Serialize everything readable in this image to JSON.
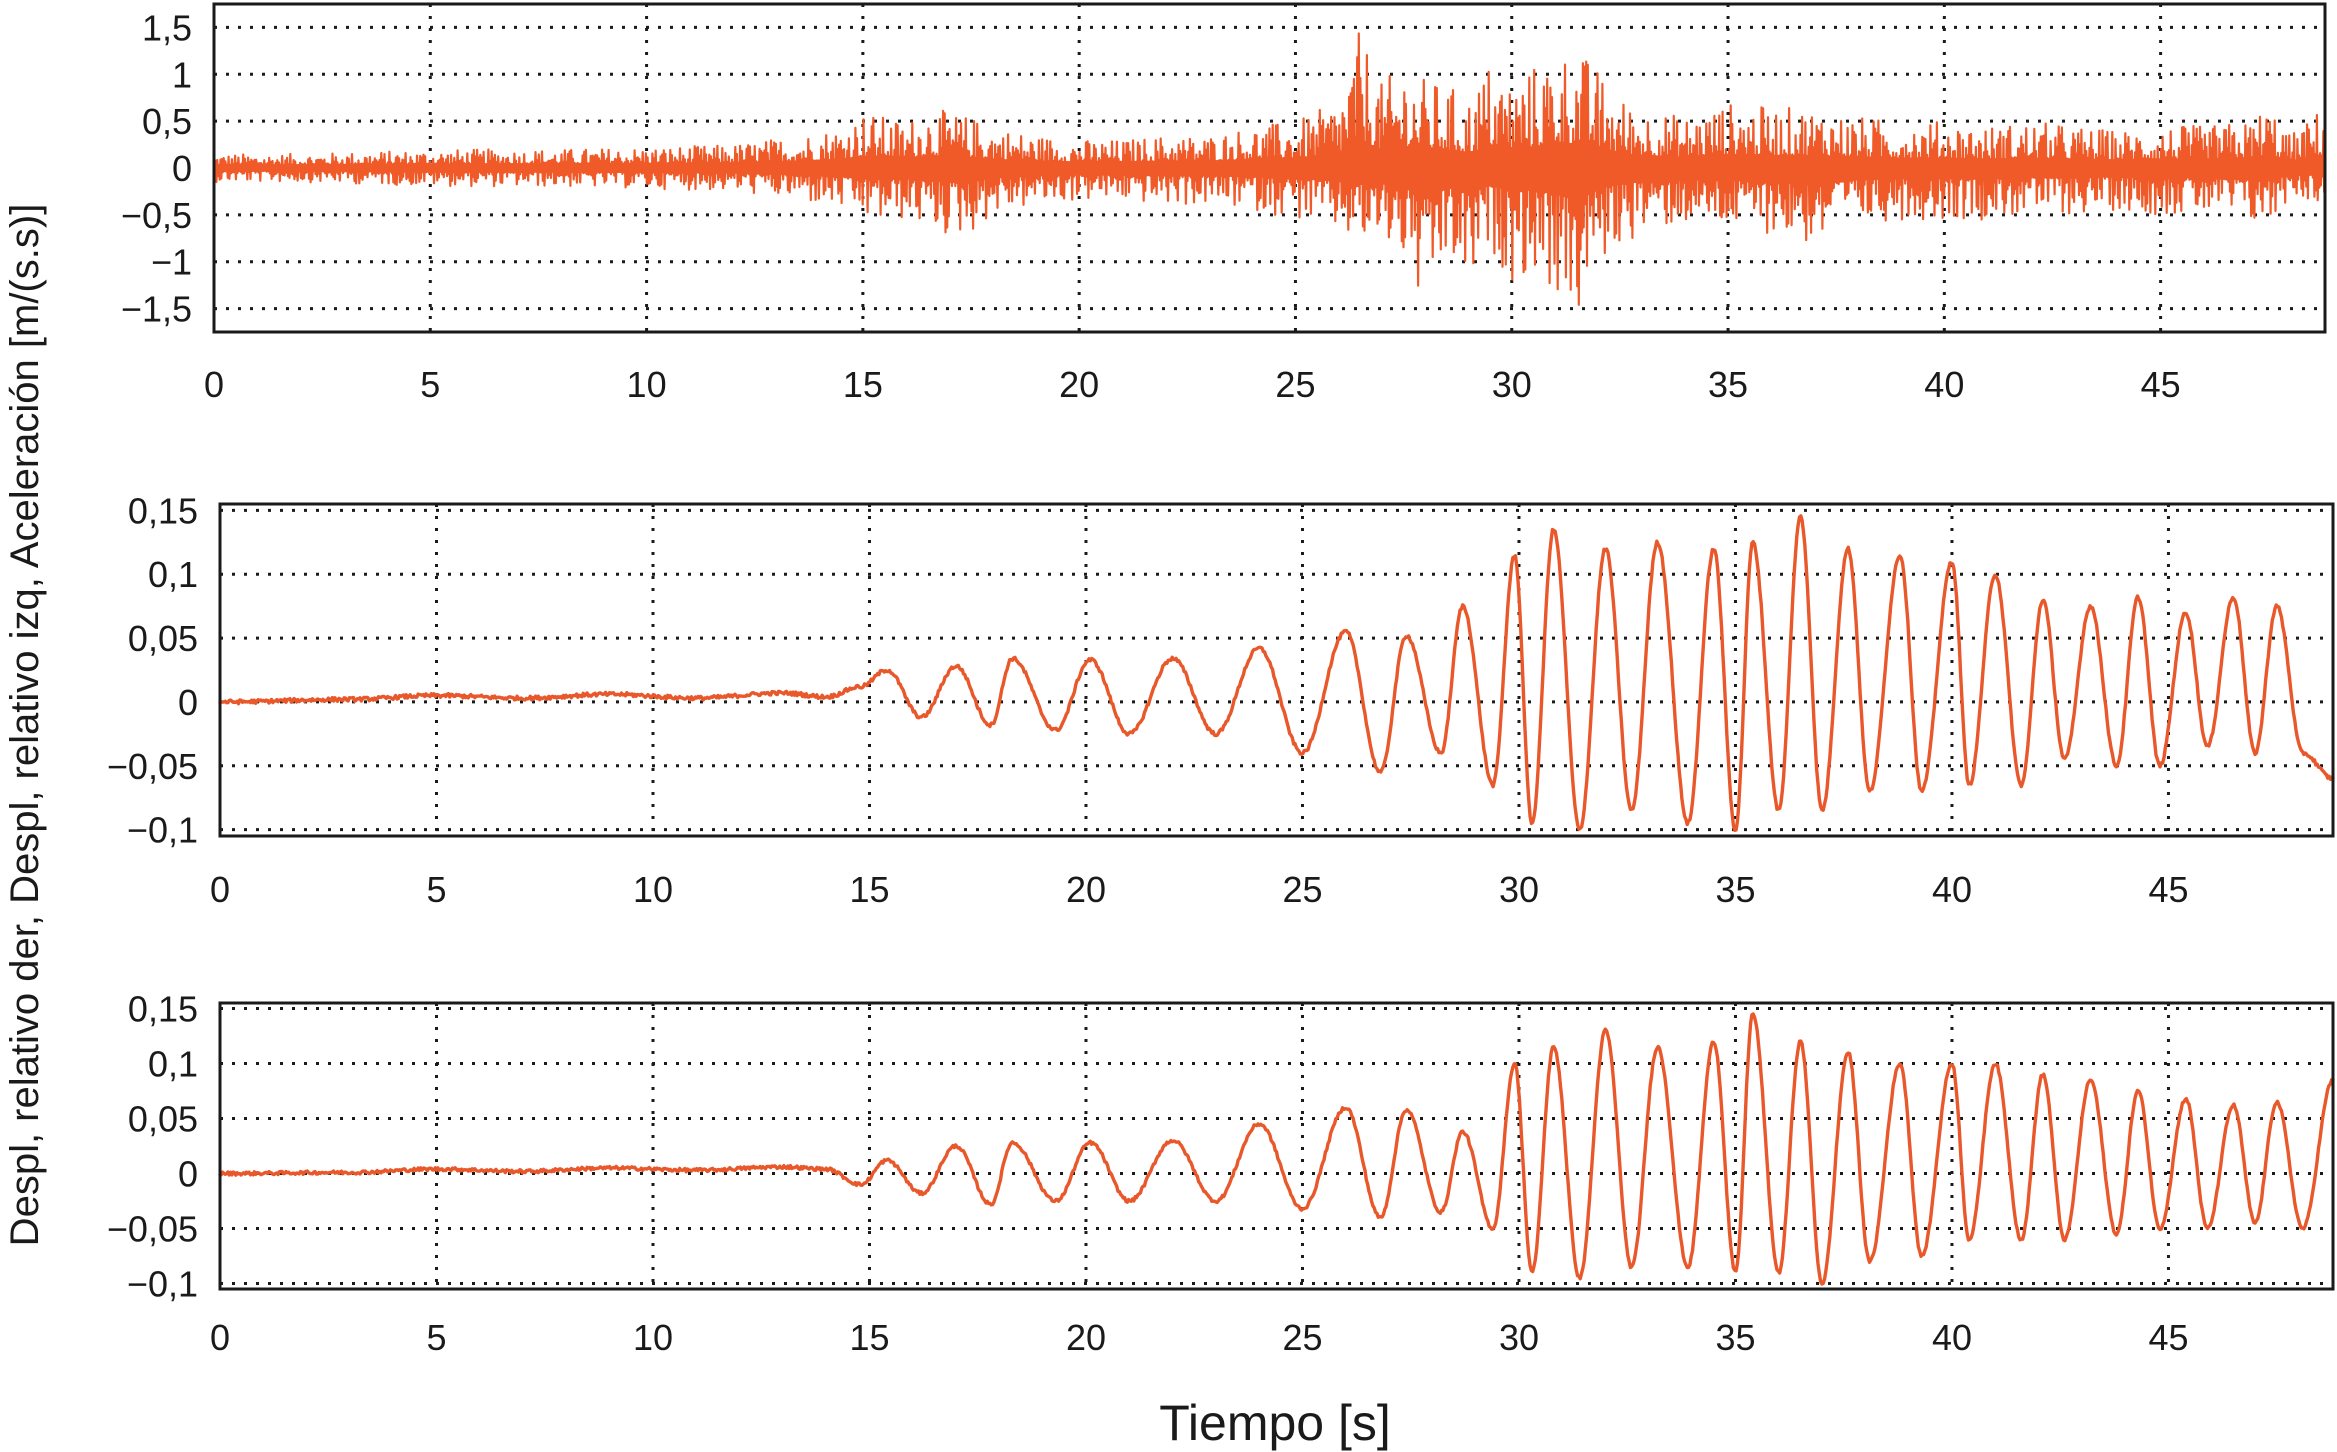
{
  "figure": {
    "y_title": "Despl, relativo der, Despl, relativo izq, Aceleración [m/(s.s)]",
    "x_title": "Tiempo [s]"
  },
  "chart_data": [
    {
      "type": "line",
      "xlim": [
        0,
        48.8
      ],
      "ylim": [
        -1.75,
        1.75
      ],
      "x_ticks": [
        0,
        5,
        10,
        15,
        20,
        25,
        30,
        35,
        40,
        45
      ],
      "x_tick_labels": [
        "0",
        "5",
        "10",
        "15",
        "20",
        "25",
        "30",
        "35",
        "40",
        "45"
      ],
      "y_ticks": [
        1.5,
        1,
        0.5,
        0,
        -0.5,
        -1,
        -1.5
      ],
      "y_tick_labels": [
        "1,5",
        "1",
        "0,5",
        "0",
        "−0,5",
        "−1",
        "−1,5"
      ],
      "grid": true,
      "color": "#f05a28",
      "series": [
        {
          "x": [
            0,
            2,
            4,
            6,
            8,
            10,
            12,
            13.5,
            14.5,
            15,
            15.5,
            16,
            16.5,
            17,
            17.5,
            18,
            19,
            20,
            21,
            22,
            23,
            24,
            25,
            25.5,
            26,
            26.5,
            27,
            27.5,
            28,
            28.5,
            29,
            29.5,
            30,
            30.5,
            31,
            31.5,
            32,
            32.5,
            33,
            34,
            35,
            36,
            37,
            38,
            39,
            40,
            41,
            42,
            43,
            44,
            45,
            46,
            47,
            47.5,
            48,
            48.5,
            48.8
          ],
          "envelope_upper": [
            0.15,
            0.15,
            0.18,
            0.2,
            0.2,
            0.22,
            0.25,
            0.35,
            0.45,
            0.6,
            0.55,
            0.5,
            0.65,
            0.6,
            0.55,
            0.45,
            0.35,
            0.3,
            0.3,
            0.35,
            0.35,
            0.45,
            0.5,
            0.6,
            0.75,
            1.5,
            0.9,
            1.15,
            0.95,
            0.9,
            0.75,
            1.15,
            0.95,
            1.1,
            1.25,
            1.3,
            1.05,
            0.75,
            0.65,
            0.55,
            0.7,
            0.65,
            0.65,
            0.55,
            0.5,
            0.5,
            0.45,
            0.5,
            0.45,
            0.4,
            0.45,
            0.45,
            0.5,
            0.7,
            0.35,
            0.55,
            0.7
          ],
          "envelope_lower": [
            -0.15,
            -0.15,
            -0.18,
            -0.2,
            -0.2,
            -0.22,
            -0.25,
            -0.35,
            -0.45,
            -0.55,
            -0.6,
            -0.55,
            -0.65,
            -0.75,
            -0.7,
            -0.5,
            -0.4,
            -0.35,
            -0.35,
            -0.4,
            -0.4,
            -0.45,
            -0.55,
            -0.6,
            -0.7,
            -0.85,
            -0.8,
            -1.0,
            -1.65,
            -1.0,
            -1.35,
            -0.9,
            -1.2,
            -1.15,
            -1.35,
            -1.7,
            -1.05,
            -0.85,
            -0.7,
            -0.6,
            -0.65,
            -0.7,
            -0.85,
            -0.6,
            -0.55,
            -0.55,
            -0.55,
            -0.5,
            -0.5,
            -0.45,
            -0.5,
            -0.5,
            -0.6,
            -0.65,
            -0.3,
            -0.35,
            -0.45
          ]
        }
      ]
    },
    {
      "type": "line",
      "xlim": [
        0,
        48.8
      ],
      "ylim": [
        -0.105,
        0.155
      ],
      "x_ticks": [
        0,
        5,
        10,
        15,
        20,
        25,
        30,
        35,
        40,
        45
      ],
      "x_tick_labels": [
        "0",
        "5",
        "10",
        "15",
        "20",
        "25",
        "30",
        "35",
        "40",
        "45"
      ],
      "y_ticks": [
        0.15,
        0.1,
        0.05,
        0,
        -0.05,
        -0.1
      ],
      "y_tick_labels": [
        "0,15",
        "0,1",
        "0,05",
        "0",
        "−0,05",
        "−0,1"
      ],
      "grid": true,
      "color": "#e8582a",
      "series": [
        {
          "x": [
            0,
            3,
            5,
            7,
            9,
            11,
            13,
            14,
            14.8,
            15.4,
            16.2,
            17.0,
            17.8,
            18.3,
            19.3,
            20.1,
            21.0,
            22.0,
            23.0,
            24.0,
            25.0,
            26.0,
            26.8,
            27.4,
            28.2,
            28.7,
            29.4,
            29.9,
            30.3,
            30.8,
            31.4,
            32.0,
            32.6,
            33.2,
            33.9,
            34.5,
            35.0,
            35.4,
            36.0,
            36.5,
            37.0,
            37.6,
            38.1,
            38.8,
            39.3,
            40.0,
            40.4,
            41.0,
            41.6,
            42.1,
            42.6,
            43.2,
            43.8,
            44.3,
            44.8,
            45.4,
            45.9,
            46.5,
            47.0,
            47.5,
            48.1,
            48.8
          ],
          "y": [
            0,
            0.002,
            0.005,
            0.003,
            0.006,
            0.003,
            0.007,
            0.004,
            0.012,
            0.025,
            -0.012,
            0.028,
            -0.018,
            0.034,
            -0.022,
            0.033,
            -0.025,
            0.034,
            -0.025,
            0.042,
            -0.04,
            0.055,
            -0.055,
            0.052,
            -0.04,
            0.075,
            -0.065,
            0.115,
            -0.095,
            0.135,
            -0.1,
            0.12,
            -0.085,
            0.125,
            -0.095,
            0.12,
            -0.1,
            0.125,
            -0.085,
            0.145,
            -0.085,
            0.12,
            -0.07,
            0.115,
            -0.07,
            0.11,
            -0.065,
            0.1,
            -0.065,
            0.08,
            -0.045,
            0.075,
            -0.05,
            0.082,
            -0.05,
            0.07,
            -0.035,
            0.082,
            -0.04,
            0.075,
            -0.04,
            -0.06
          ]
        }
      ]
    },
    {
      "type": "line",
      "xlim": [
        0,
        48.8
      ],
      "ylim": [
        -0.105,
        0.155
      ],
      "x_ticks": [
        0,
        5,
        10,
        15,
        20,
        25,
        30,
        35,
        40,
        45
      ],
      "x_tick_labels": [
        "0",
        "5",
        "10",
        "15",
        "20",
        "25",
        "30",
        "35",
        "40",
        "45"
      ],
      "y_ticks": [
        0.15,
        0.1,
        0.05,
        0,
        -0.05,
        -0.1
      ],
      "y_tick_labels": [
        "0,15",
        "0,1",
        "0,05",
        "0",
        "−0,05",
        "−0,1"
      ],
      "grid": true,
      "color": "#e8582a",
      "series": [
        {
          "x": [
            0,
            3,
            5,
            7,
            9,
            11,
            13,
            14,
            14.8,
            15.4,
            16.2,
            17.0,
            17.8,
            18.3,
            19.3,
            20.1,
            21.0,
            22.0,
            23.0,
            24.0,
            25.0,
            26.0,
            26.8,
            27.4,
            28.2,
            28.7,
            29.4,
            29.9,
            30.3,
            30.8,
            31.4,
            32.0,
            32.6,
            33.2,
            33.9,
            34.5,
            35.0,
            35.4,
            36.0,
            36.5,
            37.0,
            37.6,
            38.1,
            38.8,
            39.3,
            40.0,
            40.4,
            41.0,
            41.6,
            42.1,
            42.6,
            43.2,
            43.8,
            44.3,
            44.8,
            45.4,
            45.9,
            46.5,
            47.0,
            47.5,
            48.1,
            48.8
          ],
          "y": [
            0,
            0.001,
            0.004,
            0.002,
            0.005,
            0.003,
            0.006,
            0.004,
            -0.01,
            0.012,
            -0.018,
            0.025,
            -0.028,
            0.028,
            -0.025,
            0.028,
            -0.025,
            0.03,
            -0.025,
            0.045,
            -0.032,
            0.06,
            -0.04,
            0.058,
            -0.035,
            0.038,
            -0.05,
            0.1,
            -0.09,
            0.115,
            -0.095,
            0.13,
            -0.085,
            0.115,
            -0.085,
            0.12,
            -0.09,
            0.145,
            -0.09,
            0.12,
            -0.1,
            0.11,
            -0.08,
            0.1,
            -0.075,
            0.1,
            -0.06,
            0.1,
            -0.06,
            0.09,
            -0.06,
            0.085,
            -0.055,
            0.075,
            -0.05,
            0.068,
            -0.05,
            0.062,
            -0.045,
            0.065,
            -0.05,
            0.085
          ]
        }
      ]
    }
  ]
}
